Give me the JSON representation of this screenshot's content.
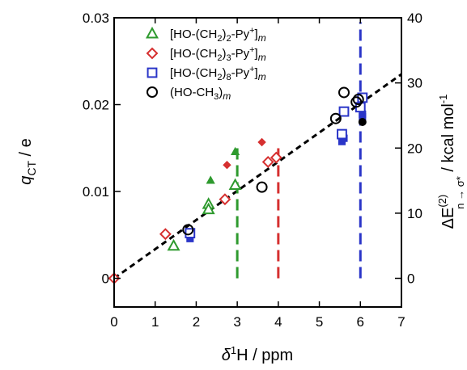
{
  "chart_data": {
    "type": "scatter",
    "x_axis": {
      "range": [
        0,
        7
      ],
      "ticks": [
        "0",
        "1",
        "2",
        "3",
        "4",
        "5",
        "6",
        "7"
      ],
      "label_delta": "δ",
      "label_sup": "1",
      "label_rest": "H / ppm"
    },
    "y_left": {
      "range": [
        -0.0033,
        0.03
      ],
      "ticks": [
        {
          "value": 0,
          "label": "0"
        },
        {
          "value": 0.01,
          "label": "0.01"
        },
        {
          "value": 0.02,
          "label": "0.02"
        },
        {
          "value": 0.03,
          "label": "0.03"
        }
      ],
      "label_q": "q",
      "label_sub": "CT",
      "label_rest": " / e"
    },
    "y_right": {
      "range": [
        -4.4,
        40
      ],
      "ticks": [
        {
          "value": 0,
          "label": "0"
        },
        {
          "value": 10,
          "label": "10"
        },
        {
          "value": 20,
          "label": "20"
        },
        {
          "value": 30,
          "label": "30"
        },
        {
          "value": 40,
          "label": "40"
        }
      ],
      "label_main": "ΔE",
      "label_sup": "(2)",
      "label_sub": "n → σ*",
      "label_rest": " / kcal mol",
      "label_rest_sup": "-1"
    },
    "legend": {
      "placement": "top-left",
      "entries": [
        {
          "marker": "triangle",
          "color": "#2e9a2e",
          "pre": "[HO-(CH",
          "sub": "2",
          "mid": ")",
          "sub2": "2",
          "post": "-Py",
          "sup": "+",
          "end": "]",
          "endsub": "m"
        },
        {
          "marker": "diamond",
          "color": "#d63030",
          "pre": "[HO-(CH",
          "sub": "2",
          "mid": ")",
          "sub2": "3",
          "post": "-Py",
          "sup": "+",
          "end": "]",
          "endsub": "m"
        },
        {
          "marker": "square",
          "color": "#2a35c8",
          "pre": "[HO-(CH",
          "sub": "2",
          "mid": ")",
          "sub2": "8",
          "post": "-Py",
          "sup": "+",
          "end": "]",
          "endsub": "m"
        },
        {
          "marker": "circle",
          "color": "#000000",
          "pre": "(HO-CH",
          "sub": "3",
          "mid": ")",
          "sub2": "",
          "post": "",
          "sup": "",
          "end": "",
          "endsub": "m"
        }
      ]
    },
    "open_series": [
      {
        "name": "[HO-(CH2)2-Py+]m",
        "marker": "triangle",
        "color": "#2e9a2e",
        "points": [
          [
            1.45,
            0.0037
          ],
          [
            2.3,
            0.0085
          ],
          [
            2.3,
            0.0079
          ],
          [
            2.95,
            0.0107
          ]
        ]
      },
      {
        "name": "[HO-(CH2)3-Py+]m",
        "marker": "diamond",
        "color": "#d63030",
        "points": [
          [
            0.0,
            0.0
          ],
          [
            1.25,
            0.0051
          ],
          [
            2.7,
            0.0091
          ],
          [
            3.75,
            0.0134
          ],
          [
            3.95,
            0.0139
          ]
        ]
      },
      {
        "name": "[HO-(CH2)8-Py+]m",
        "marker": "square",
        "color": "#2a35c8",
        "points": [
          [
            1.85,
            0.0052
          ],
          [
            5.55,
            0.0166
          ],
          [
            5.6,
            0.0192
          ],
          [
            6.0,
            0.0197
          ],
          [
            6.05,
            0.0208
          ]
        ]
      },
      {
        "name": "(HO-CH3)m",
        "marker": "circle",
        "color": "#000000",
        "points": [
          [
            1.8,
            0.0056
          ],
          [
            3.6,
            0.0105
          ],
          [
            5.4,
            0.0184
          ],
          [
            5.6,
            0.0214
          ],
          [
            5.9,
            0.0203
          ],
          [
            5.95,
            0.0206
          ]
        ]
      }
    ],
    "filled_series": [
      {
        "marker": "triangle",
        "color": "#2e9a2e",
        "points": [
          [
            2.35,
            15.0
          ],
          [
            2.95,
            19.4
          ]
        ]
      },
      {
        "marker": "diamond",
        "color": "#d63030",
        "points": [
          [
            2.75,
            17.4
          ],
          [
            3.6,
            20.9
          ]
        ]
      },
      {
        "marker": "square",
        "color": "#2a35c8",
        "points": [
          [
            1.85,
            6.1
          ],
          [
            5.55,
            21.0
          ],
          [
            5.6,
            21.5
          ],
          [
            6.05,
            24.8
          ],
          [
            6.05,
            25.2
          ]
        ]
      },
      {
        "marker": "circle",
        "color": "#000000",
        "points": [
          [
            6.05,
            24.0
          ]
        ]
      }
    ],
    "fit_line": {
      "color": "#000000",
      "x": [
        0,
        7
      ],
      "y": [
        0,
        0.0235
      ]
    },
    "vertical_lines": [
      {
        "x": 3,
        "color": "#2e9a2e",
        "y_range": [
          0,
          0.0156
        ]
      },
      {
        "x": 4,
        "color": "#d63030",
        "y_range": [
          0,
          0.0156
        ]
      },
      {
        "x": 6,
        "color": "#2a35c8",
        "y_range": [
          0,
          0.0295
        ]
      }
    ],
    "grid": false
  }
}
